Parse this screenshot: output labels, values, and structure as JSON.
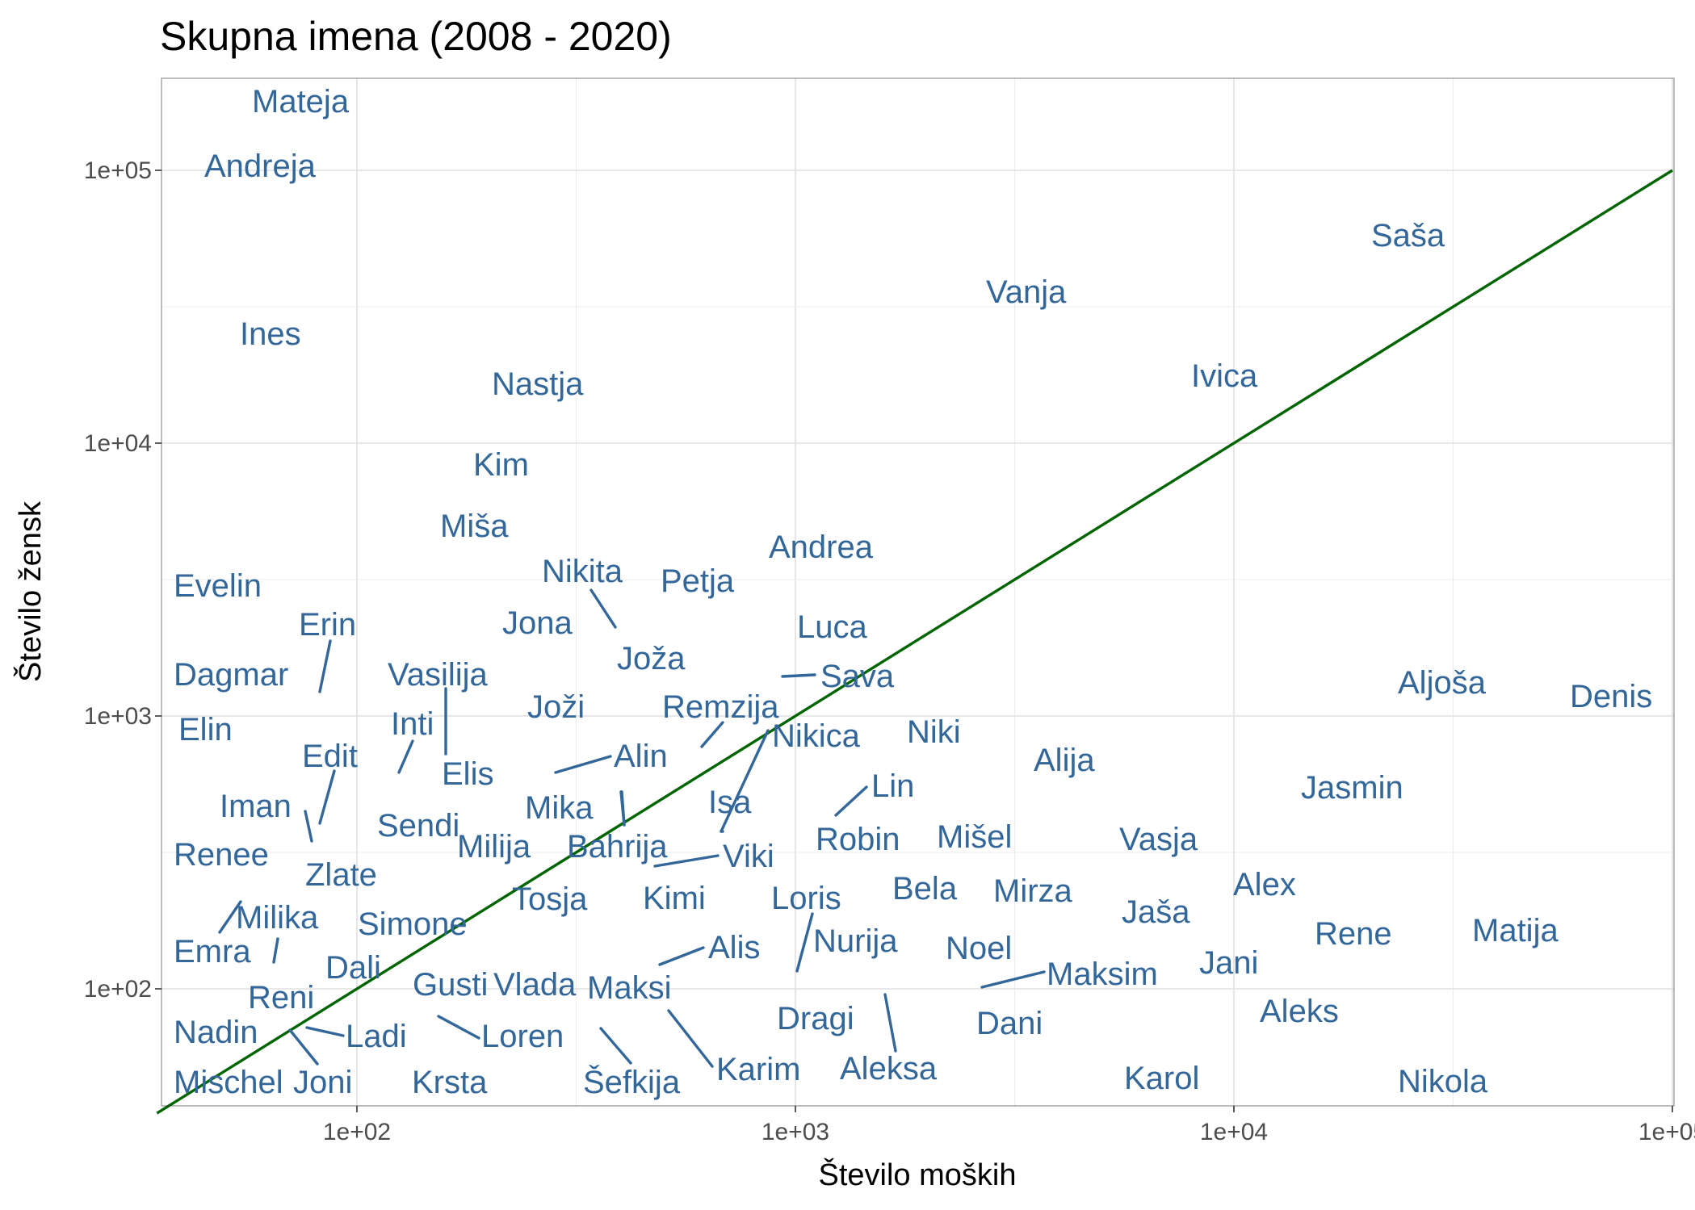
{
  "chart_data": {
    "type": "scatter",
    "title": "Skupna imena (2008 - 2020)",
    "xlabel": "Število moških",
    "ylabel": "Število žensk",
    "x_scale": "log10",
    "y_scale": "log10",
    "xlim": [
      35,
      100000
    ],
    "ylim": [
      40,
      200000
    ],
    "x_ticks": [
      100,
      1000,
      10000,
      100000
    ],
    "x_tick_labels": [
      "1e+02",
      "1e+03",
      "1e+04",
      "1e+05"
    ],
    "y_ticks": [
      100,
      1000,
      10000,
      100000
    ],
    "y_tick_labels": [
      "1e+02",
      "1e+03",
      "1e+04",
      "1e+05"
    ],
    "grid": true,
    "reference_line": {
      "type": "identity",
      "description": "y = x",
      "color": "#006400"
    },
    "label_color": "#33679a",
    "points": [
      {
        "name": "Mateja",
        "x": 80,
        "y": 165000
      },
      {
        "name": "Andreja",
        "x": 45,
        "y": 98000
      },
      {
        "name": "Saša",
        "x": 25000,
        "y": 52000
      },
      {
        "name": "Vanja",
        "x": 2800,
        "y": 32000
      },
      {
        "name": "Ines",
        "x": 56,
        "y": 24000
      },
      {
        "name": "Ivica",
        "x": 9600,
        "y": 16000
      },
      {
        "name": "Nastja",
        "x": 200,
        "y": 15500
      },
      {
        "name": "Kim",
        "x": 175,
        "y": 8000
      },
      {
        "name": "Miša",
        "x": 150,
        "y": 4800
      },
      {
        "name": "Andrea",
        "x": 920,
        "y": 4000
      },
      {
        "name": "Nikita",
        "x": 320,
        "y": 2900
      },
      {
        "name": "Petja",
        "x": 560,
        "y": 2800
      },
      {
        "name": "Evelin",
        "x": 42,
        "y": 2750
      },
      {
        "name": "Erin",
        "x": 82,
        "y": 1900
      },
      {
        "name": "Jona",
        "x": 250,
        "y": 2000
      },
      {
        "name": "Luca",
        "x": 1100,
        "y": 1950
      },
      {
        "name": "Joža",
        "x": 360,
        "y": 2000
      },
      {
        "name": "Dagmar",
        "x": 44,
        "y": 1350
      },
      {
        "name": "Vasilija",
        "x": 135,
        "y": 1250
      },
      {
        "name": "Sava",
        "x": 920,
        "y": 1380
      },
      {
        "name": "Aljoša",
        "x": 30000,
        "y": 1250
      },
      {
        "name": "Denis",
        "x": 95000,
        "y": 1100
      },
      {
        "name": "Joži",
        "x": 270,
        "y": 1000
      },
      {
        "name": "Remzija",
        "x": 620,
        "y": 770
      },
      {
        "name": "Elin",
        "x": 48,
        "y": 900
      },
      {
        "name": "Inti",
        "x": 120,
        "y": 580
      },
      {
        "name": "Nikica",
        "x": 860,
        "y": 900
      },
      {
        "name": "Niki",
        "x": 2000,
        "y": 850
      },
      {
        "name": "Edit",
        "x": 85,
        "y": 400
      },
      {
        "name": "Alin",
        "x": 280,
        "y": 610
      },
      {
        "name": "Elis",
        "x": 140,
        "y": 720
      },
      {
        "name": "Alija",
        "x": 4000,
        "y": 650
      },
      {
        "name": "Lin",
        "x": 1250,
        "y": 420
      },
      {
        "name": "Jasmin",
        "x": 19000,
        "y": 510
      },
      {
        "name": "Iman",
        "x": 78,
        "y": 330
      },
      {
        "name": "Isa",
        "x": 690,
        "y": 360
      },
      {
        "name": "Mika",
        "x": 380,
        "y": 390
      },
      {
        "name": "Sendi",
        "x": 155,
        "y": 400
      },
      {
        "name": "Milija",
        "x": 200,
        "y": 330
      },
      {
        "name": "Bahrija",
        "x": 360,
        "y": 330
      },
      {
        "name": "Viki",
        "x": 470,
        "y": 285
      },
      {
        "name": "Robin",
        "x": 1500,
        "y": 350
      },
      {
        "name": "Mišel",
        "x": 2500,
        "y": 360
      },
      {
        "name": "Vasja",
        "x": 7000,
        "y": 350
      },
      {
        "name": "Renee",
        "x": 45,
        "y": 295
      },
      {
        "name": "Zlate",
        "x": 86,
        "y": 250
      },
      {
        "name": "Bela",
        "x": 2000,
        "y": 210
      },
      {
        "name": "Mirza",
        "x": 3300,
        "y": 205
      },
      {
        "name": "Alex",
        "x": 13000,
        "y": 210
      },
      {
        "name": "Tosja",
        "x": 280,
        "y": 200
      },
      {
        "name": "Kimi",
        "x": 540,
        "y": 200
      },
      {
        "name": "Loris",
        "x": 1060,
        "y": 185
      },
      {
        "name": "Jaša",
        "x": 6500,
        "y": 180
      },
      {
        "name": "Milika",
        "x": 55,
        "y": 205
      },
      {
        "name": "Simone",
        "x": 135,
        "y": 165
      },
      {
        "name": "Rene",
        "x": 19000,
        "y": 150
      },
      {
        "name": "Matija",
        "x": 43000,
        "y": 150
      },
      {
        "name": "Emra",
        "x": 55,
        "y": 120
      },
      {
        "name": "Nurija",
        "x": 1050,
        "y": 115
      },
      {
        "name": "Alis",
        "x": 480,
        "y": 120
      },
      {
        "name": "Noel",
        "x": 2300,
        "y": 130
      },
      {
        "name": "Jani",
        "x": 10500,
        "y": 120
      },
      {
        "name": "Dali",
        "x": 100,
        "y": 110
      },
      {
        "name": "Maksim",
        "x": 2800,
        "y": 100
      },
      {
        "name": "Gusti",
        "x": 190,
        "y": 100
      },
      {
        "name": "Vlada",
        "x": 270,
        "y": 100
      },
      {
        "name": "Maksi",
        "x": 420,
        "y": 95
      },
      {
        "name": "Reni",
        "x": 68,
        "y": 90
      },
      {
        "name": "Aleks",
        "x": 16000,
        "y": 80
      },
      {
        "name": "Dragi",
        "x": 1130,
        "y": 78
      },
      {
        "name": "Dani",
        "x": 3100,
        "y": 75
      },
      {
        "name": "Nadin",
        "x": 46,
        "y": 70
      },
      {
        "name": "Ladi",
        "x": 75,
        "y": 72
      },
      {
        "name": "Loren",
        "x": 165,
        "y": 79
      },
      {
        "name": "Karim",
        "x": 740,
        "y": 53
      },
      {
        "name": "Aleksa",
        "x": 1650,
        "y": 97
      },
      {
        "name": "Mischel",
        "x": 44,
        "y": 48
      },
      {
        "name": "Joni",
        "x": 67,
        "y": 72
      },
      {
        "name": "Krsta",
        "x": 165,
        "y": 48
      },
      {
        "name": "Šefkija",
        "x": 420,
        "y": 73
      },
      {
        "name": "Karol",
        "x": 7000,
        "y": 48
      },
      {
        "name": "Nikola",
        "x": 32000,
        "y": 47
      }
    ]
  }
}
